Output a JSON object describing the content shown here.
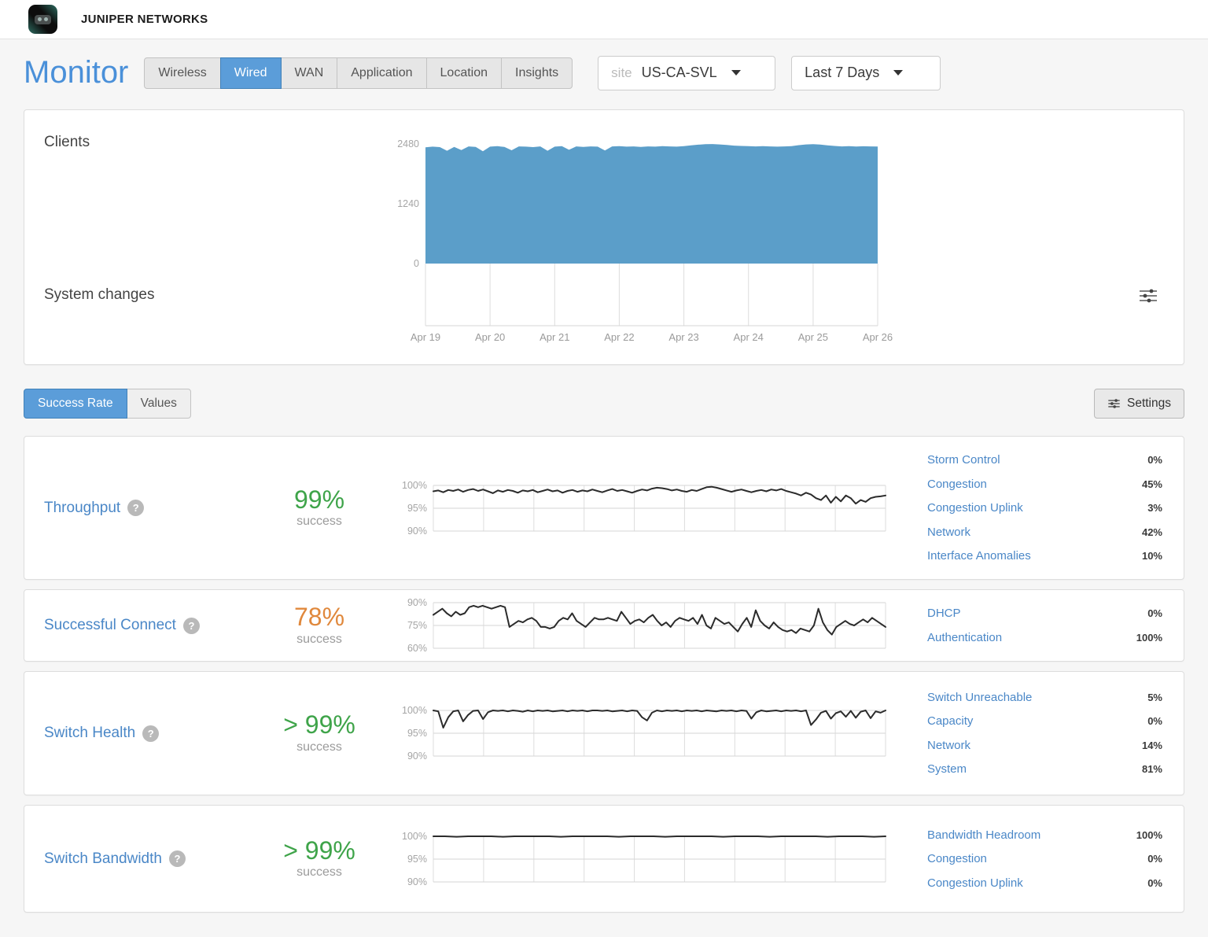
{
  "brand": {
    "name": "JUNIPER NETWORKS"
  },
  "page": {
    "title": "Monitor"
  },
  "tabs": [
    {
      "label": "Wireless",
      "active": false
    },
    {
      "label": "Wired",
      "active": true
    },
    {
      "label": "WAN",
      "active": false
    },
    {
      "label": "Application",
      "active": false
    },
    {
      "label": "Location",
      "active": false
    },
    {
      "label": "Insights",
      "active": false
    }
  ],
  "site_selector": {
    "prefix": "site",
    "value": "US-CA-SVL"
  },
  "date_range": {
    "value": "Last 7 Days"
  },
  "overview": {
    "clients_label": "Clients",
    "system_changes_label": "System changes",
    "x_labels": [
      "Apr 19",
      "Apr 20",
      "Apr 21",
      "Apr 22",
      "Apr 23",
      "Apr 24",
      "Apr 25",
      "Apr 26"
    ]
  },
  "toggle": {
    "options": [
      "Success Rate",
      "Values"
    ],
    "active": "Success Rate"
  },
  "settings_button": {
    "label": "Settings"
  },
  "colors": {
    "accent_blue": "#5b9dd9",
    "link_blue": "#4a87c7",
    "success_green": "#3fa44a",
    "warn_orange": "#e0883c",
    "area_blue": "#5b9ec9",
    "line_dark": "#2b2b2b"
  },
  "metrics": [
    {
      "name": "Throughput",
      "value": "99%",
      "value_color": "#3fa44a",
      "success_label": "success",
      "classifiers": [
        {
          "label": "Storm Control",
          "value": "0%"
        },
        {
          "label": "Congestion",
          "value": "45%"
        },
        {
          "label": "Congestion Uplink",
          "value": "3%"
        },
        {
          "label": "Network",
          "value": "42%"
        },
        {
          "label": "Interface Anomalies",
          "value": "10%"
        }
      ]
    },
    {
      "name": "Successful Connect",
      "value": "78%",
      "value_color": "#e0883c",
      "success_label": "success",
      "classifiers": [
        {
          "label": "DHCP",
          "value": "0%"
        },
        {
          "label": "Authentication",
          "value": "100%"
        }
      ]
    },
    {
      "name": "Switch Health",
      "value": "> 99%",
      "value_color": "#3fa44a",
      "success_label": "success",
      "classifiers": [
        {
          "label": "Switch Unreachable",
          "value": "5%"
        },
        {
          "label": "Capacity",
          "value": "0%"
        },
        {
          "label": "Network",
          "value": "14%"
        },
        {
          "label": "System",
          "value": "81%"
        }
      ]
    },
    {
      "name": "Switch Bandwidth",
      "value": "> 99%",
      "value_color": "#3fa44a",
      "success_label": "success",
      "classifiers": [
        {
          "label": "Bandwidth Headroom",
          "value": "100%"
        },
        {
          "label": "Congestion",
          "value": "0%"
        },
        {
          "label": "Congestion Uplink",
          "value": "0%"
        }
      ]
    }
  ],
  "chart_data": [
    {
      "id": "clients",
      "type": "area",
      "title": "Clients",
      "ylim": [
        0,
        2480
      ],
      "yticks": [
        {
          "v": 2480,
          "label": "2480"
        },
        {
          "v": 1240,
          "label": "1240"
        },
        {
          "v": 0,
          "label": "0"
        }
      ],
      "x_range": [
        "Apr 19",
        "Apr 26"
      ],
      "color": "#5b9ec9",
      "values": [
        2410,
        2425,
        2415,
        2340,
        2420,
        2355,
        2430,
        2420,
        2330,
        2425,
        2435,
        2420,
        2350,
        2430,
        2425,
        2415,
        2430,
        2340,
        2425,
        2435,
        2360,
        2430,
        2420,
        2430,
        2425,
        2345,
        2430,
        2435,
        2425,
        2430,
        2420,
        2430,
        2425,
        2435,
        2430,
        2425,
        2435,
        2450,
        2465,
        2475,
        2478,
        2470,
        2460,
        2445,
        2440,
        2435,
        2430,
        2435,
        2430,
        2425,
        2430,
        2435,
        2455,
        2470,
        2476,
        2468,
        2450,
        2440,
        2430,
        2435,
        2428,
        2432,
        2430,
        2428
      ]
    },
    {
      "id": "throughput-success-rate",
      "type": "line",
      "title": "Throughput success rate",
      "ylim": [
        90,
        100
      ],
      "yticks": [
        {
          "v": 100,
          "label": "100%"
        },
        {
          "v": 95,
          "label": "95%"
        },
        {
          "v": 90,
          "label": "90%"
        }
      ],
      "color": "#2b2b2b",
      "values": [
        98.7,
        98.9,
        98.5,
        99.0,
        98.8,
        99.1,
        98.6,
        99.0,
        99.2,
        98.8,
        99.1,
        98.7,
        98.3,
        98.9,
        98.6,
        99.0,
        98.8,
        98.4,
        98.9,
        98.7,
        99.0,
        98.5,
        98.8,
        99.1,
        98.7,
        98.9,
        98.4,
        98.8,
        99.0,
        98.6,
        98.9,
        98.7,
        99.1,
        98.8,
        98.5,
        98.9,
        99.2,
        98.8,
        99.0,
        98.7,
        98.4,
        98.8,
        99.1,
        98.9,
        99.3,
        99.5,
        99.4,
        99.2,
        98.9,
        99.1,
        98.8,
        98.6,
        99.0,
        98.8,
        99.2,
        99.6,
        99.7,
        99.5,
        99.2,
        98.9,
        98.6,
        98.9,
        99.1,
        98.8,
        98.5,
        98.8,
        99.0,
        98.7,
        99.1,
        98.9,
        99.2,
        98.8,
        98.5,
        98.2,
        97.8,
        98.4,
        98.0,
        97.2,
        96.8,
        97.8,
        96.2,
        97.5,
        96.5,
        97.8,
        97.2,
        96.0,
        96.8,
        96.4,
        97.2,
        97.5,
        97.6,
        97.8
      ]
    },
    {
      "id": "successful-connect-success-rate",
      "type": "line",
      "title": "Successful Connect success rate",
      "ylim": [
        60,
        90
      ],
      "yticks": [
        {
          "v": 90,
          "label": "90%"
        },
        {
          "v": 75,
          "label": "75%"
        },
        {
          "v": 60,
          "label": "60%"
        }
      ],
      "color": "#2b2b2b",
      "values": [
        82,
        84,
        86,
        83,
        81,
        84,
        82,
        83,
        87,
        88,
        87,
        88,
        87,
        86,
        87,
        88,
        87,
        74,
        76,
        78,
        77,
        79,
        80,
        78,
        74,
        74,
        73,
        74,
        78,
        80,
        79,
        83,
        78,
        76,
        74,
        77,
        80,
        79,
        79,
        80,
        79,
        78,
        84,
        80,
        76,
        78,
        79,
        77,
        80,
        82,
        78,
        75,
        77,
        74,
        78,
        80,
        79,
        78,
        80,
        76,
        82,
        75,
        73,
        80,
        78,
        76,
        77,
        74,
        71,
        76,
        80,
        74,
        85,
        78,
        75,
        73,
        77,
        74,
        72,
        71,
        72,
        70,
        73,
        72,
        71,
        75,
        86,
        77,
        72,
        69,
        74,
        76,
        78,
        76,
        75,
        77,
        79,
        77,
        80,
        78,
        76,
        74
      ]
    },
    {
      "id": "switch-health-success-rate",
      "type": "line",
      "title": "Switch Health success rate",
      "ylim": [
        90,
        100
      ],
      "yticks": [
        {
          "v": 100,
          "label": "100%"
        },
        {
          "v": 95,
          "label": "95%"
        },
        {
          "v": 90,
          "label": "90%"
        }
      ],
      "color": "#2b2b2b",
      "values": [
        100,
        99.8,
        96.2,
        98.5,
        99.8,
        100,
        97.6,
        99.0,
        99.9,
        100,
        98.1,
        99.6,
        100,
        99.9,
        100,
        99.8,
        100,
        99.9,
        99.7,
        100,
        99.8,
        100,
        99.9,
        100,
        99.8,
        99.9,
        100,
        99.8,
        100,
        99.9,
        100,
        99.8,
        100,
        100,
        99.9,
        100,
        99.8,
        99.9,
        100,
        99.8,
        100,
        99.9,
        98.5,
        97.8,
        99.5,
        100,
        99.8,
        100,
        99.9,
        100,
        99.8,
        100,
        99.9,
        100,
        99.8,
        100,
        99.9,
        99.8,
        100,
        99.9,
        100,
        99.8,
        100,
        99.9,
        98.2,
        99.6,
        100,
        99.8,
        99.9,
        100,
        99.8,
        100,
        99.9,
        100,
        99.8,
        100,
        96.8,
        98.0,
        99.5,
        99.9,
        98.2,
        99.4,
        99.8,
        98.6,
        99.9,
        98.4,
        99.7,
        100,
        98.3,
        99.8,
        99.5,
        100
      ]
    },
    {
      "id": "switch-bandwidth-success-rate",
      "type": "line",
      "title": "Switch Bandwidth success rate",
      "ylim": [
        90,
        100
      ],
      "yticks": [
        {
          "v": 100,
          "label": "100%"
        },
        {
          "v": 95,
          "label": "95%"
        },
        {
          "v": 90,
          "label": "90%"
        }
      ],
      "color": "#2b2b2b",
      "values": [
        100,
        100,
        99.9,
        100,
        100,
        100,
        99.9,
        100,
        100,
        100,
        100,
        99.9,
        100,
        100,
        100,
        100,
        99.9,
        100,
        100,
        100,
        99.9,
        100,
        100,
        100,
        100,
        99.9,
        100,
        100,
        100,
        99.9,
        100,
        100,
        100,
        100,
        99.9,
        100,
        100,
        100,
        99.9,
        100
      ]
    },
    {
      "id": "system-changes-timeline",
      "type": "line",
      "title": "System changes",
      "ylim": [
        0,
        1
      ],
      "yticks": [
        {
          "v": 0,
          "label": ""
        }
      ],
      "color": "#2b2b2b",
      "values": []
    }
  ]
}
